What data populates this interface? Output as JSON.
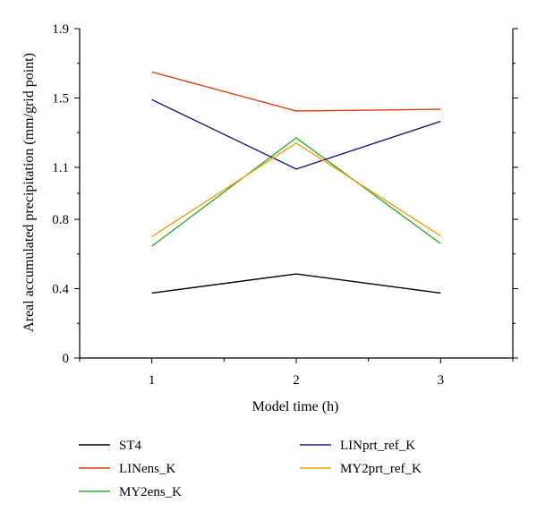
{
  "chart_data": {
    "type": "line",
    "title": "",
    "xlabel": "Model time (h)",
    "ylabel": "Areal accumulated precipitation (mm/grid point)",
    "x": [
      1,
      2,
      3
    ],
    "xlim": [
      0.5,
      3.5
    ],
    "ylim": [
      0,
      1.9
    ],
    "yticks": [
      0,
      0.4,
      0.8,
      1.1,
      1.5,
      1.9
    ],
    "ytick_labels": [
      "0",
      "0.4",
      "0.8",
      "1.1",
      "1.5",
      "1.9"
    ],
    "xticks": [
      1,
      2,
      3
    ],
    "xtick_labels": [
      "1",
      "2",
      "3"
    ],
    "grid": false,
    "legend_position": "bottom",
    "series": [
      {
        "name": "ST4",
        "color": "#000000",
        "values": [
          0.375,
          0.485,
          0.375
        ]
      },
      {
        "name": "LINens_K",
        "color": "#d9410f",
        "values": [
          1.65,
          1.425,
          1.435
        ]
      },
      {
        "name": "MY2ens_K",
        "color": "#39a935",
        "values": [
          0.645,
          1.27,
          0.66
        ]
      },
      {
        "name": "LINprt_ref_K",
        "color": "#1e1a80",
        "values": [
          1.49,
          1.09,
          1.365
        ]
      },
      {
        "name": "MY2prt_ref_K",
        "color": "#f0a019",
        "values": [
          0.7,
          1.24,
          0.705
        ]
      }
    ]
  }
}
